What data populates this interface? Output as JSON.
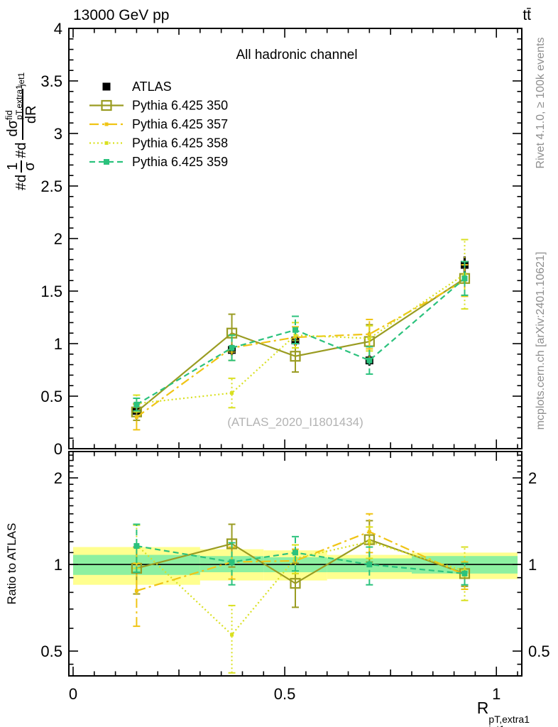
{
  "header": {
    "left": "13000 GeV pp",
    "right": "tt̄"
  },
  "subtitle": "All hadronic channel",
  "watermark": "(ATLAS_2020_I1801434)",
  "side_notes": {
    "top": "Rivet 4.1.0, ≥ 100k events",
    "bottom": "mcplots.cern.ch [arXiv:2401.10621]",
    "color": "#8e8e8e"
  },
  "ylabel_main": {
    "p1": "#d",
    "f1n": "1",
    "f1d": "σ",
    "p2": "#d",
    "f2n": "dσ",
    "f2nsup": "fid",
    "f2nsub": "pT,extra1",
    "f2d": "dR",
    "suffix": "jet1"
  },
  "ylabel_ratio": "Ratio to ATLAS",
  "xlabel": {
    "base": "R",
    "sup": "pT,extra1",
    "sub": "jet1"
  },
  "colors": {
    "frame": "#000000",
    "watermark": "#b3b3b3",
    "band_yellow": "#ffff8f",
    "band_green": "#8df0a0"
  },
  "chart_data": {
    "type": "line",
    "title": "All hadronic channel",
    "xlabel": "R^pT,extra1_jet1",
    "ylabel": "#d 1/σ #d dσ^fid / dR^pT,extra1_jet1",
    "xlim": [
      -0.01,
      1.06
    ],
    "x": [
      0.15,
      0.375,
      0.525,
      0.7,
      0.925
    ],
    "bin_edges": [
      0,
      0.3,
      0.45,
      0.6,
      0.8,
      1.05
    ],
    "x_ticks": {
      "major": [
        0,
        0.5,
        1
      ],
      "medium": [
        0.25,
        0.75
      ],
      "minor_step": 0.05
    },
    "main_panel": {
      "ylim": [
        0,
        4
      ],
      "ytick_step": 0.5,
      "yminor_step": 0.1,
      "grid": false
    },
    "reference": {
      "name": "ATLAS",
      "color": "#000000",
      "marker": "square-filled",
      "marker_size": 11,
      "values": [
        0.36,
        0.94,
        1.03,
        0.84,
        1.75
      ],
      "errors": [
        0.04,
        0.05,
        0.05,
        0.05,
        0.08
      ]
    },
    "series": [
      {
        "name": "Pythia 6.425 350",
        "color": "#9a9c22",
        "dash": "",
        "marker": "square-open",
        "marker_size": 13,
        "values": [
          0.35,
          1.1,
          0.88,
          1.02,
          1.62
        ],
        "errors": [
          0.08,
          0.18,
          0.15,
          0.16,
          0.16
        ],
        "ratio": [
          0.97,
          1.18,
          0.86,
          1.22,
          0.93
        ],
        "ratio_errors": [
          0.18,
          0.2,
          0.15,
          0.2,
          0.09
        ]
      },
      {
        "name": "Pythia 6.425 357",
        "color": "#f0c414",
        "dash": "13,5,3,5",
        "marker": "square-filled",
        "marker_size": 5,
        "values": [
          0.3,
          0.96,
          1.06,
          1.09,
          1.6
        ],
        "errors": [
          0.12,
          0.12,
          0.1,
          0.14,
          0.15
        ],
        "ratio": [
          0.81,
          1.02,
          1.03,
          1.3,
          0.92
        ],
        "ratio_errors": [
          0.2,
          0.13,
          0.1,
          0.2,
          0.1
        ]
      },
      {
        "name": "Pythia 6.425 358",
        "color": "#d9e021",
        "dash": "2,3.5",
        "marker": "square-filled",
        "marker_size": 5,
        "values": [
          0.43,
          0.53,
          1.08,
          1.05,
          1.66
        ],
        "errors": [
          0.08,
          0.14,
          0.12,
          0.12,
          0.33
        ],
        "ratio": [
          1.17,
          0.57,
          1.05,
          1.2,
          0.95
        ],
        "ratio_errors": [
          0.2,
          0.15,
          0.12,
          0.15,
          0.2
        ]
      },
      {
        "name": "Pythia 6.425 359",
        "color": "#2bc27d",
        "dash": "8,5",
        "marker": "square-filled",
        "marker_size": 8,
        "values": [
          0.42,
          0.96,
          1.13,
          0.84,
          1.62
        ],
        "errors": [
          0.06,
          0.12,
          0.13,
          0.13,
          0.16
        ],
        "ratio": [
          1.16,
          1.02,
          1.1,
          1.0,
          0.93
        ],
        "ratio_errors": [
          0.22,
          0.17,
          0.15,
          0.15,
          0.08
        ]
      }
    ],
    "ratio_panel": {
      "scale": "log",
      "ylim": [
        0.41,
        2.47
      ],
      "label_ticks": [
        0.5,
        1,
        2
      ],
      "minor_ticks": [
        0.45,
        0.6,
        0.7,
        0.8,
        0.9,
        1.1,
        1.2,
        1.3,
        1.4,
        1.5,
        1.6,
        1.7,
        1.8,
        1.9,
        2.1,
        2.2,
        2.3,
        2.4
      ],
      "unity_line": 1,
      "bands": {
        "yellow": [
          [
            0.85,
            1.15
          ],
          [
            0.88,
            1.13
          ],
          [
            0.88,
            1.12
          ],
          [
            0.89,
            1.08
          ],
          [
            0.89,
            1.1
          ]
        ],
        "green": [
          [
            0.92,
            1.08
          ],
          [
            0.94,
            1.07
          ],
          [
            0.94,
            1.06
          ],
          [
            0.94,
            1.05
          ],
          [
            0.93,
            1.07
          ]
        ]
      },
      "legend_position": "none"
    }
  }
}
